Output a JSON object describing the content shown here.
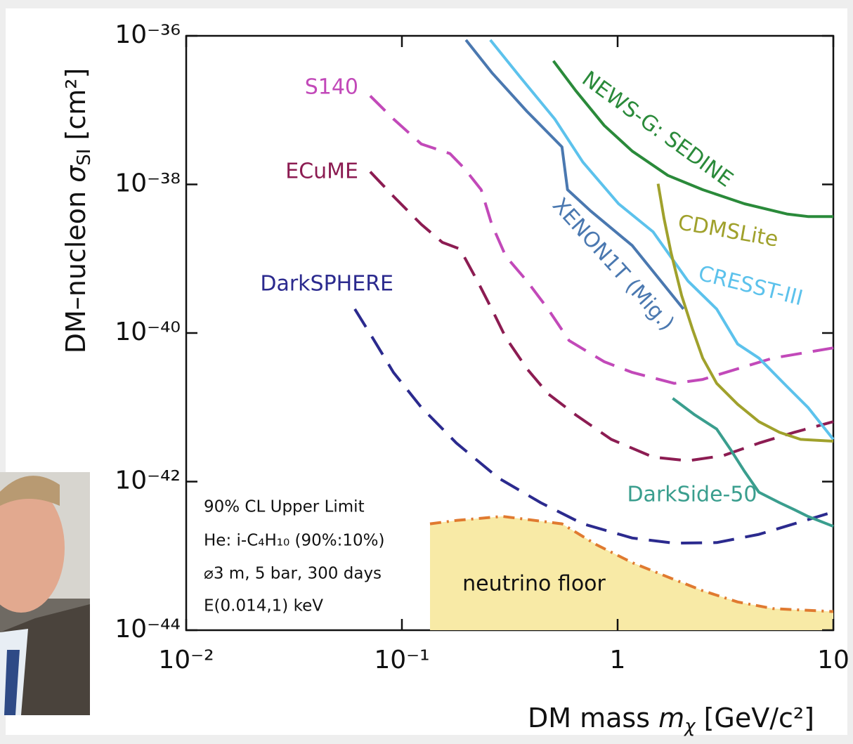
{
  "chart_data": {
    "type": "line",
    "x_label": [
      "DM mass ",
      "m",
      "χ",
      " [GeV/c²]"
    ],
    "y_label": [
      "DM–nucleon ",
      "σ",
      "SI",
      " [cm²]"
    ],
    "log_x": true,
    "log_y": true,
    "xlim": [
      0.01,
      10
    ],
    "ylim": [
      1e-44,
      1e-36
    ],
    "xticks": [
      {
        "value": 0.01,
        "label": "10⁻²"
      },
      {
        "value": 0.1,
        "label": "10⁻¹"
      },
      1,
      10
    ],
    "yticks": [
      {
        "value": 1e-36,
        "label": "10⁻³⁶"
      },
      {
        "value": 1e-38,
        "label": "10⁻³⁸"
      },
      {
        "value": 1e-40,
        "label": "10⁻⁴⁰"
      },
      {
        "value": 1e-42,
        "label": "10⁻⁴²"
      },
      {
        "value": 1e-44,
        "label": "10⁻⁴⁴"
      }
    ],
    "annotations": [
      "90% CL Upper Limit",
      "He: i-C₄H₁₀ (90%:10%)",
      "⌀3 m, 5 bar, 300 days",
      "E(0.014,1) keV"
    ],
    "series": [
      {
        "name": "S140",
        "color": "#c249b9",
        "style": "dashed",
        "x": [
          0.0713,
          0.0914,
          0.123,
          0.167,
          0.194,
          0.233,
          0.261,
          0.303,
          0.38,
          0.476,
          0.596,
          0.867,
          1.17,
          1.83,
          2.48,
          3.6,
          5.25,
          10
        ],
        "values": [
          1.55e-37,
          7.6e-38,
          3.5e-38,
          2.6e-38,
          1.66e-38,
          8.5e-39,
          2.9e-39,
          1.08e-39,
          5e-40,
          2.1e-40,
          7.9e-41,
          4.1e-41,
          2.95e-41,
          2.1e-41,
          2.37e-41,
          3.3e-41,
          4.6e-41,
          6.3e-41
        ]
      },
      {
        "name": "ECuME",
        "color": "#8c1c52",
        "style": "dashed",
        "x": [
          0.0713,
          0.0914,
          0.123,
          0.154,
          0.186,
          0.224,
          0.261,
          0.303,
          0.38,
          0.476,
          0.64,
          0.934,
          1.46,
          2.12,
          3.09,
          4.52,
          6.58,
          10
        ],
        "values": [
          1.48e-38,
          6.9e-39,
          2.9e-39,
          1.66e-39,
          1.35e-39,
          5e-40,
          2.1e-40,
          8.7e-41,
          3.3e-41,
          1.52e-41,
          7.9e-42,
          3.7e-42,
          2.14e-42,
          1.91e-42,
          2.24e-42,
          3.3e-42,
          4.6e-42,
          6.4e-42
        ]
      },
      {
        "name": "DarkSPHERE",
        "color": "#2b2a8e",
        "style": "dashed",
        "x": [
          0.0605,
          0.073,
          0.0914,
          0.123,
          0.179,
          0.28,
          0.44,
          0.69,
          1.17,
          1.83,
          2.88,
          4.52,
          6.58,
          10
        ],
        "values": [
          2.1e-40,
          8.7e-41,
          2.95e-41,
          1e-41,
          3.3e-42,
          1.12e-42,
          5.2e-43,
          2.7e-43,
          1.74e-43,
          1.48e-43,
          1.51e-43,
          1.95e-43,
          2.7e-43,
          3.9e-43
        ]
      },
      {
        "name": "XENON1T (Mig.)",
        "color": "#4a78b0",
        "style": "solid",
        "x": [
          0.198,
          0.261,
          0.38,
          0.552,
          0.586,
          0.749,
          1.17,
          2.02
        ],
        "values": [
          8.8e-37,
          3.2e-37,
          9.6e-38,
          3.2e-38,
          8.5e-39,
          4.4e-39,
          1.5e-39,
          2.1e-40
        ]
      },
      {
        "name": "CRESST-III",
        "color": "#5cc2ec",
        "style": "solid",
        "x": [
          0.257,
          0.353,
          0.511,
          0.69,
          1.01,
          1.46,
          2.12,
          2.88,
          3.6,
          4.52,
          6.09,
          7.62,
          10
        ],
        "values": [
          8.8e-37,
          2.8e-37,
          7.6e-38,
          2e-38,
          5.5e-39,
          2.3e-39,
          5e-40,
          2.1e-40,
          7.1e-41,
          4.6e-41,
          1.91e-41,
          1e-41,
          3.7e-42
        ]
      },
      {
        "name": "NEWS-G: SEDINE",
        "color": "#2a8a3a",
        "style": "solid",
        "x": [
          0.504,
          0.64,
          0.867,
          1.17,
          1.71,
          2.48,
          3.87,
          6.09,
          7.62,
          10
        ],
        "values": [
          4.6e-37,
          1.82e-37,
          6.2e-38,
          2.8e-38,
          1.32e-38,
          8.5e-39,
          5.5e-39,
          4e-39,
          3.7e-39,
          3.7e-39
        ]
      },
      {
        "name": "CDMSLite",
        "color": "#a0a12c",
        "style": "solid",
        "x": [
          1.54,
          1.64,
          1.77,
          1.98,
          2.23,
          2.48,
          2.88,
          3.6,
          4.52,
          5.63,
          7.05,
          10
        ],
        "values": [
          1.02e-38,
          3.5e-39,
          1.2e-39,
          3.2e-40,
          1.1e-40,
          4.6e-41,
          2.1e-41,
          1.1e-41,
          6.4e-42,
          4.6e-42,
          3.7e-42,
          3.5e-42
        ]
      },
      {
        "name": "DarkSide-50",
        "color": "#3a9e8e",
        "style": "solid",
        "x": [
          1.8,
          2.28,
          2.88,
          3.34,
          3.87,
          4.52,
          5.63,
          6.58,
          7.62,
          10
        ],
        "values": [
          1.32e-41,
          7.9e-42,
          5.1e-42,
          2.7e-42,
          1.38e-42,
          7.2e-43,
          5.2e-43,
          4.2e-43,
          3.4e-43,
          2.5e-43
        ]
      },
      {
        "name": "neutrino floor",
        "color": "#e07a30",
        "fill": "#f8eaa6",
        "style": "dash-dot",
        "x": [
          0.135,
          0.179,
          0.292,
          0.552,
          0.8,
          1.17,
          1.71,
          2.48,
          3.6,
          5.25,
          10
        ],
        "values": [
          2.7e-43,
          3e-43,
          3.4e-43,
          2.7e-43,
          1.41e-43,
          8.1e-44,
          5.2e-44,
          3.4e-44,
          2.4e-44,
          1.95e-44,
          1.78e-44
        ]
      }
    ]
  }
}
